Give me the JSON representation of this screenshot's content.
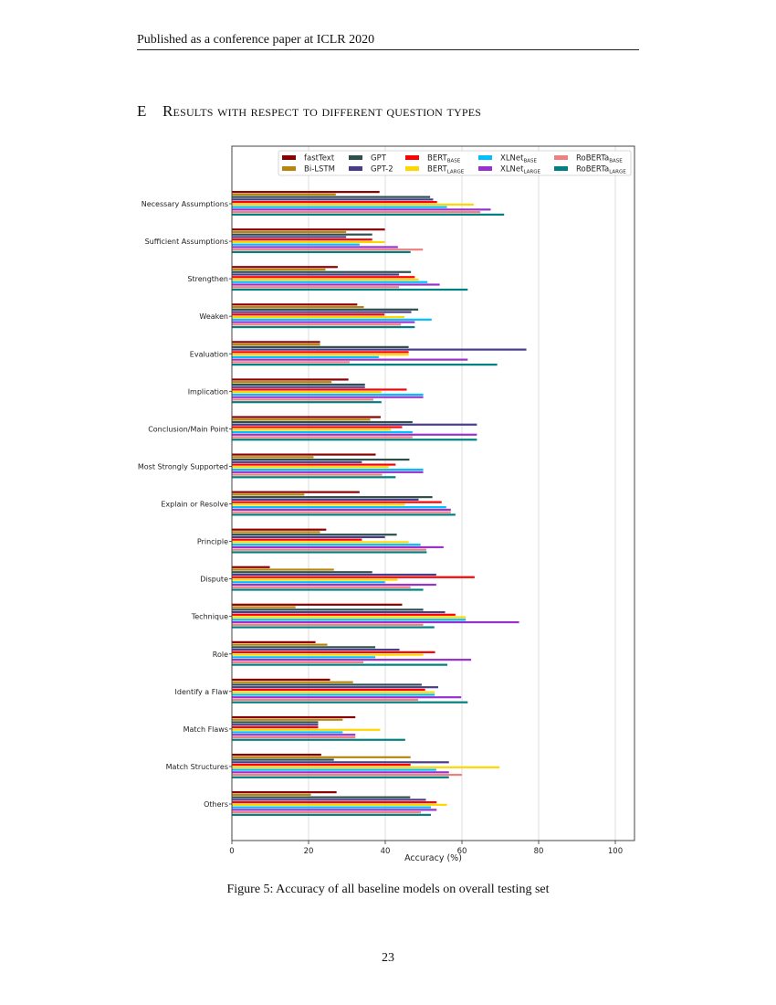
{
  "header": {
    "running_head": "Published as a conference paper at ICLR 2020"
  },
  "section": {
    "number": "E",
    "title": "Results with respect to different question types"
  },
  "figure": {
    "caption": "Figure 5: Accuracy of all baseline models on overall testing set"
  },
  "page_number": "23",
  "chart_data": {
    "type": "bar",
    "orientation": "horizontal",
    "xlabel": "Accuracy (%)",
    "ylabel": "",
    "xlim": [
      0,
      105
    ],
    "xticks": [
      "0",
      "20",
      "40",
      "60",
      "80",
      "100"
    ],
    "grid": "vertical",
    "legend": "top",
    "categories": [
      "Necessary Assumptions",
      "Sufficient Assumptions",
      "Strengthen",
      "Weaken",
      "Evaluation",
      "Implication",
      "Conclusion/Main Point",
      "Most Strongly Supported",
      "Explain or Resolve",
      "Principle",
      "Dispute",
      "Technique",
      "Role",
      "Identify a Flaw",
      "Match Flaws",
      "Match Structures",
      "Others"
    ],
    "series": [
      {
        "name": "fastText",
        "sub": "",
        "color": "#8b0000",
        "values": [
          38.5,
          39.9,
          27.6,
          32.7,
          23.0,
          30.4,
          38.8,
          37.5,
          33.3,
          24.6,
          9.9,
          44.4,
          21.8,
          25.6,
          32.2,
          23.3,
          27.3
        ]
      },
      {
        "name": "Bi-LSTM",
        "sub": "",
        "color": "#b8860b",
        "values": [
          27.1,
          29.8,
          24.4,
          34.4,
          23.0,
          26.0,
          36.1,
          21.3,
          18.9,
          23.0,
          26.6,
          16.6,
          24.9,
          31.6,
          28.9,
          46.6,
          20.6
        ]
      },
      {
        "name": "GPT",
        "sub": "",
        "color": "#2f4f4f",
        "values": [
          51.7,
          36.6,
          46.7,
          48.6,
          46.1,
          34.7,
          47.1,
          46.3,
          52.3,
          43.0,
          36.6,
          49.9,
          37.4,
          49.5,
          22.5,
          26.6,
          46.5
        ]
      },
      {
        "name": "GPT-2",
        "sub": "",
        "color": "#483d8b",
        "values": [
          52.5,
          29.8,
          43.6,
          46.8,
          76.8,
          34.7,
          63.9,
          33.9,
          48.7,
          39.9,
          53.3,
          55.6,
          43.7,
          53.8,
          22.5,
          56.6,
          50.6
        ]
      },
      {
        "name": "BERT",
        "sub": "BASE",
        "color": "#ff0000",
        "values": [
          53.5,
          36.6,
          47.7,
          39.8,
          46.1,
          45.6,
          44.4,
          42.7,
          54.7,
          33.9,
          63.3,
          58.3,
          53.0,
          50.4,
          22.5,
          46.6,
          53.4
        ]
      },
      {
        "name": "BERT",
        "sub": "LARGE",
        "color": "#ffd700",
        "values": [
          63.1,
          39.9,
          48.7,
          45.0,
          46.1,
          39.0,
          41.5,
          40.9,
          45.1,
          46.1,
          43.2,
          61.0,
          49.9,
          52.9,
          38.7,
          69.8,
          56.1
        ]
      },
      {
        "name": "XLNet",
        "sub": "BASE",
        "color": "#00bfff",
        "values": [
          56.1,
          33.3,
          51.0,
          52.1,
          38.3,
          49.9,
          47.1,
          49.9,
          55.9,
          49.2,
          39.9,
          61.0,
          37.4,
          52.9,
          28.9,
          53.3,
          51.9
        ]
      },
      {
        "name": "XLNet",
        "sub": "LARGE",
        "color": "#9932cc",
        "values": [
          67.5,
          43.3,
          54.2,
          47.7,
          61.5,
          49.9,
          63.9,
          49.9,
          57.1,
          55.2,
          53.3,
          74.9,
          62.4,
          59.8,
          32.2,
          56.6,
          53.4
        ]
      },
      {
        "name": "RoBERTa",
        "sub": "BASE",
        "color": "#f08080",
        "values": [
          64.8,
          49.8,
          43.6,
          44.1,
          30.7,
          36.9,
          47.1,
          39.2,
          57.1,
          50.7,
          46.6,
          49.9,
          34.3,
          48.6,
          32.2,
          60.0,
          49.3
        ]
      },
      {
        "name": "RoBERTa",
        "sub": "LARGE",
        "color": "#008080",
        "values": [
          71.0,
          46.6,
          61.5,
          47.7,
          69.2,
          39.0,
          63.9,
          42.7,
          58.3,
          50.8,
          49.9,
          52.8,
          56.2,
          61.5,
          45.2,
          56.6,
          51.9
        ]
      }
    ]
  }
}
